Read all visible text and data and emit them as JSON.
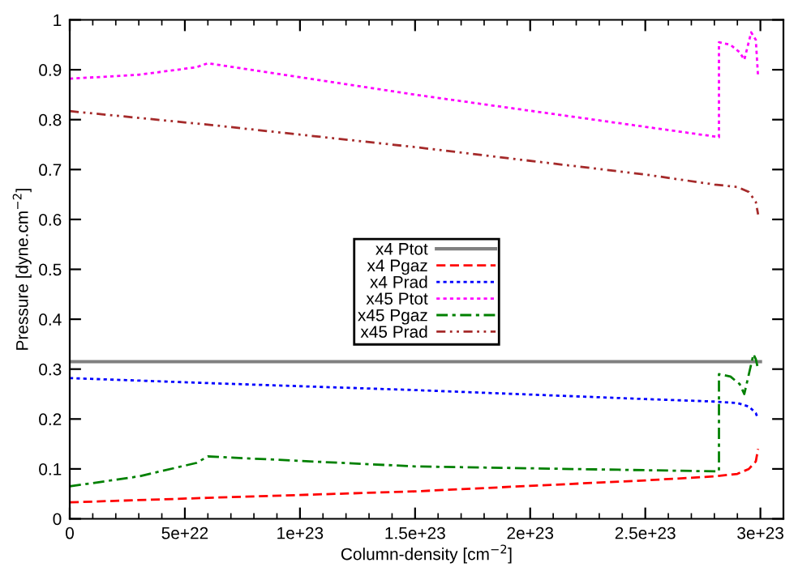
{
  "chart_data": {
    "type": "line",
    "xlabel": "Column-density [cm$^{−2}$]",
    "ylabel": "Pressure [dyne.cm$^{−2}$]",
    "xlim": [
      0,
      3.1e+23
    ],
    "xticks": [
      {
        "value": 0,
        "label": "0"
      },
      {
        "value": 5e+22,
        "label": "5e+22"
      },
      {
        "value": 1e+23,
        "label": "1e+23"
      },
      {
        "value": 1.5e+23,
        "label": "1.5e+23"
      },
      {
        "value": 2e+23,
        "label": "2e+23"
      },
      {
        "value": 2.5e+23,
        "label": "2.5e+23"
      },
      {
        "value": 3e+23,
        "label": "3e+23"
      }
    ],
    "ylim": [
      0,
      1
    ],
    "yticks": [
      0,
      0.1,
      0.2,
      0.3,
      0.4,
      0.5,
      0.6,
      0.7,
      0.8,
      0.9,
      1
    ],
    "grid": false,
    "legend": "center",
    "series": [
      {
        "name": "x4 Ptot",
        "color": "#808080",
        "line_style": "solid",
        "x": [
          0,
          1.5e+23,
          3e+23
        ],
        "values": [
          0.315,
          0.315,
          0.315
        ]
      },
      {
        "name": "x4 Pgaz",
        "color": "#ff0000",
        "line_style": "dashed",
        "x": [
          0,
          6e+22,
          1.5e+23,
          2.5e+23,
          2.8e+23,
          2.9e+23,
          2.95e+23,
          2.98e+23,
          2.99e+23
        ],
        "values": [
          0.033,
          0.042,
          0.055,
          0.077,
          0.085,
          0.09,
          0.1,
          0.115,
          0.14
        ]
      },
      {
        "name": "x4 Prad",
        "color": "#0000ff",
        "line_style": "dotted",
        "x": [
          0,
          6e+22,
          1.5e+23,
          2.5e+23,
          2.8e+23,
          2.9e+23,
          2.95e+23,
          2.98e+23,
          2.99e+23
        ],
        "values": [
          0.282,
          0.272,
          0.258,
          0.24,
          0.235,
          0.232,
          0.225,
          0.212,
          0.2
        ]
      },
      {
        "name": "x45 Ptot",
        "color": "#ff00ff",
        "line_style": "dotted",
        "x": [
          0,
          3e+22,
          5.5e+22,
          6e+22,
          1.5e+23,
          2.82e+23,
          2.82e+23,
          2.87e+23,
          2.91e+23,
          2.93e+23,
          2.96e+23,
          2.98e+23,
          2.99e+23
        ],
        "values": [
          0.882,
          0.89,
          0.905,
          0.913,
          0.85,
          0.765,
          0.955,
          0.95,
          0.935,
          0.92,
          0.975,
          0.96,
          0.885
        ]
      },
      {
        "name": "x45 Pgaz",
        "color": "#008000",
        "line_style": "dashdot",
        "x": [
          0,
          3e+22,
          5.5e+22,
          6e+22,
          1.5e+23,
          2.82e+23,
          2.82e+23,
          2.87e+23,
          2.91e+23,
          2.93e+23,
          2.97e+23,
          2.98e+23,
          2.99e+23
        ],
        "values": [
          0.065,
          0.085,
          0.112,
          0.125,
          0.105,
          0.095,
          0.29,
          0.285,
          0.27,
          0.25,
          0.33,
          0.32,
          0.3
        ]
      },
      {
        "name": "x45 Prad",
        "color": "#a52a2a",
        "line_style": "dashdotdot",
        "x": [
          0,
          6e+22,
          1.5e+23,
          2.5e+23,
          2.8e+23,
          2.9e+23,
          2.95e+23,
          2.98e+23,
          2.99e+23
        ],
        "values": [
          0.817,
          0.79,
          0.745,
          0.69,
          0.67,
          0.665,
          0.655,
          0.635,
          0.61
        ]
      }
    ]
  }
}
